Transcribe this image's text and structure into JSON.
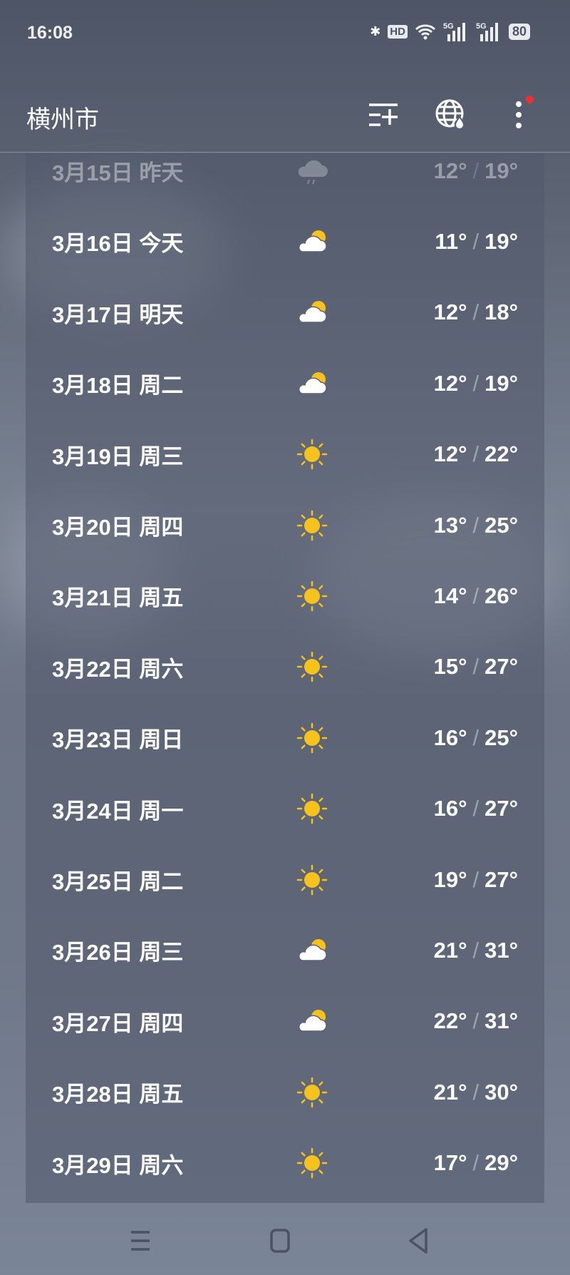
{
  "status_bar": {
    "time": "16:08",
    "hd_label": "HD",
    "battery": "80",
    "network": "5G",
    "icons": [
      "bluetooth-icon",
      "hd-voice-icon",
      "wifi-icon",
      "signal-5g-icon",
      "signal-5g-icon",
      "battery-icon"
    ]
  },
  "header": {
    "city": "横州市",
    "actions": [
      "add-city-icon",
      "globe-weather-icon",
      "more-icon"
    ],
    "notification_dot_color": "#f03030"
  },
  "forecast": [
    {
      "date": "3月15日",
      "day": "昨天",
      "weather": "rain",
      "low": "12°",
      "high": "19°"
    },
    {
      "date": "3月16日",
      "day": "今天",
      "weather": "partly-cloudy",
      "low": "11°",
      "high": "19°"
    },
    {
      "date": "3月17日",
      "day": "明天",
      "weather": "partly-cloudy",
      "low": "12°",
      "high": "18°"
    },
    {
      "date": "3月18日",
      "day": "周二",
      "weather": "partly-cloudy",
      "low": "12°",
      "high": "19°"
    },
    {
      "date": "3月19日",
      "day": "周三",
      "weather": "sunny",
      "low": "12°",
      "high": "22°"
    },
    {
      "date": "3月20日",
      "day": "周四",
      "weather": "sunny",
      "low": "13°",
      "high": "25°"
    },
    {
      "date": "3月21日",
      "day": "周五",
      "weather": "sunny",
      "low": "14°",
      "high": "26°"
    },
    {
      "date": "3月22日",
      "day": "周六",
      "weather": "sunny",
      "low": "15°",
      "high": "27°"
    },
    {
      "date": "3月23日",
      "day": "周日",
      "weather": "sunny",
      "low": "16°",
      "high": "25°"
    },
    {
      "date": "3月24日",
      "day": "周一",
      "weather": "sunny",
      "low": "16°",
      "high": "27°"
    },
    {
      "date": "3月25日",
      "day": "周二",
      "weather": "sunny",
      "low": "19°",
      "high": "27°"
    },
    {
      "date": "3月26日",
      "day": "周三",
      "weather": "partly-cloudy",
      "low": "21°",
      "high": "31°"
    },
    {
      "date": "3月27日",
      "day": "周四",
      "weather": "partly-cloudy",
      "low": "22°",
      "high": "31°"
    },
    {
      "date": "3月28日",
      "day": "周五",
      "weather": "sunny",
      "low": "21°",
      "high": "30°"
    },
    {
      "date": "3月29日",
      "day": "周六",
      "weather": "sunny",
      "low": "17°",
      "high": "29°"
    }
  ],
  "colors": {
    "sun": "#f8c21c",
    "cloud": "#ffffff",
    "rain_cloud": "#c8ccd4"
  },
  "nav_bar": [
    "menu-icon",
    "home-icon",
    "back-icon"
  ]
}
